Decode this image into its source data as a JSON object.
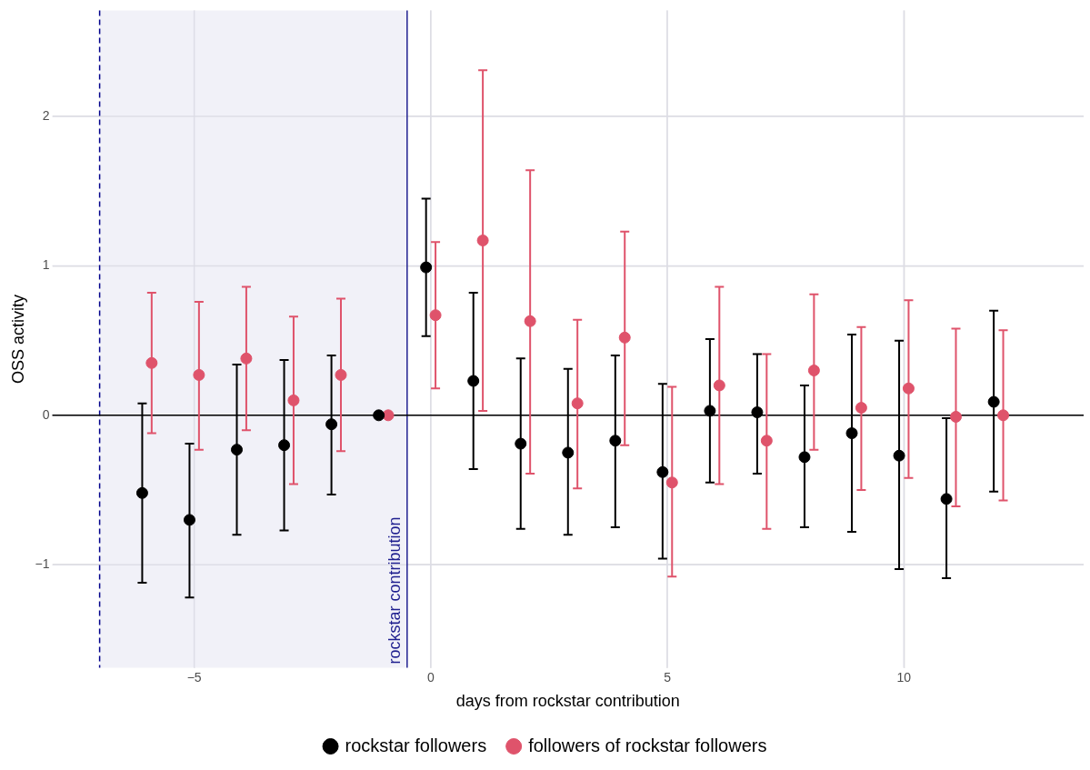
{
  "chart_data": {
    "type": "scatter",
    "xlabel": "days from rockstar contribution",
    "ylabel": "OSS activity",
    "xlim": [
      -8,
      13.8
    ],
    "ylim": [
      -1.69,
      2.71
    ],
    "xticks": [
      {
        "value": -5,
        "label": "−5"
      },
      0,
      5,
      10
    ],
    "yticks": [
      {
        "value": -1,
        "label": "−1"
      },
      0,
      1,
      2
    ],
    "grid": true,
    "legend": "bottom",
    "marker": "circle",
    "bands": [
      {
        "axis": "x",
        "from": -7,
        "to": -0.5,
        "color": "#f1f1f8"
      }
    ],
    "ref_lines": [
      {
        "axis": "x",
        "value": -7,
        "color": "#00008b",
        "line_style": "dashed"
      },
      {
        "axis": "x",
        "value": -0.5,
        "label": "rockstar contribution",
        "color": "#1f1f8f",
        "line_style": "solid"
      },
      {
        "axis": "y",
        "value": 0,
        "color": "#000000",
        "line_style": "solid"
      }
    ],
    "series": [
      {
        "name": "rockstar followers",
        "color": "#000000",
        "x": [
          -6.1,
          -5.1,
          -4.1,
          -3.1,
          -2.1,
          -1.1,
          -0.1,
          0.9,
          1.9,
          2.9,
          3.9,
          4.9,
          5.9,
          6.9,
          7.9,
          8.9,
          9.9,
          10.9,
          11.9
        ],
        "values": [
          -0.52,
          -0.7,
          -0.23,
          -0.2,
          -0.06,
          0,
          0.99,
          0.23,
          -0.19,
          -0.25,
          -0.17,
          -0.38,
          0.03,
          0.02,
          -0.28,
          -0.12,
          -0.27,
          -0.56,
          0.09
        ],
        "errors": [
          [
            -1.12,
            0.08
          ],
          [
            -1.22,
            -0.19
          ],
          [
            -0.8,
            0.34
          ],
          [
            -0.77,
            0.37
          ],
          [
            -0.53,
            0.4
          ],
          null,
          [
            0.53,
            1.45
          ],
          [
            -0.36,
            0.82
          ],
          [
            -0.76,
            0.38
          ],
          [
            -0.8,
            0.31
          ],
          [
            -0.75,
            0.4
          ],
          [
            -0.96,
            0.21
          ],
          [
            -0.45,
            0.51
          ],
          [
            -0.39,
            0.41
          ],
          [
            -0.75,
            0.2
          ],
          [
            -0.78,
            0.54
          ],
          [
            -1.03,
            0.5
          ],
          [
            -1.09,
            -0.02
          ],
          [
            -0.51,
            0.7
          ]
        ]
      },
      {
        "name": "followers of rockstar followers",
        "color": "#df536b",
        "x": [
          -5.9,
          -4.9,
          -3.9,
          -2.9,
          -1.9,
          -0.9,
          0.1,
          1.1,
          2.1,
          3.1,
          4.1,
          5.1,
          6.1,
          7.1,
          8.1,
          9.1,
          10.1,
          11.1,
          12.1
        ],
        "values": [
          0.35,
          0.27,
          0.38,
          0.1,
          0.27,
          0,
          0.67,
          1.17,
          0.63,
          0.08,
          0.52,
          -0.45,
          0.2,
          -0.17,
          0.3,
          0.05,
          0.18,
          -0.01,
          0
        ],
        "errors": [
          [
            -0.12,
            0.82
          ],
          [
            -0.23,
            0.76
          ],
          [
            -0.1,
            0.86
          ],
          [
            -0.46,
            0.66
          ],
          [
            -0.24,
            0.78
          ],
          null,
          [
            0.18,
            1.16
          ],
          [
            0.03,
            2.31
          ],
          [
            -0.39,
            1.64
          ],
          [
            -0.49,
            0.64
          ],
          [
            -0.2,
            1.23
          ],
          [
            -1.08,
            0.19
          ],
          [
            -0.46,
            0.86
          ],
          [
            -0.76,
            0.41
          ],
          [
            -0.23,
            0.81
          ],
          [
            -0.5,
            0.59
          ],
          [
            -0.42,
            0.77
          ],
          [
            -0.61,
            0.58
          ],
          [
            -0.57,
            0.57
          ]
        ]
      }
    ]
  }
}
